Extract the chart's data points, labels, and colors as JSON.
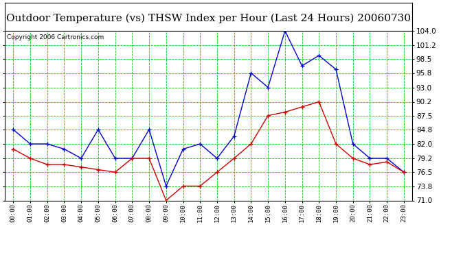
{
  "title": "Outdoor Temperature (vs) THSW Index per Hour (Last 24 Hours) 20060730",
  "copyright": "Copyright 2006 Cartronics.com",
  "hours": [
    "00:00",
    "01:00",
    "02:00",
    "03:00",
    "04:00",
    "05:00",
    "06:00",
    "07:00",
    "08:00",
    "09:00",
    "10:00",
    "11:00",
    "12:00",
    "13:00",
    "14:00",
    "15:00",
    "16:00",
    "17:00",
    "18:00",
    "19:00",
    "20:00",
    "21:00",
    "22:00",
    "23:00"
  ],
  "blue_data": [
    84.8,
    82.0,
    82.0,
    81.0,
    79.2,
    84.8,
    79.2,
    79.2,
    84.8,
    73.8,
    81.0,
    82.0,
    79.2,
    83.5,
    95.8,
    93.0,
    104.0,
    97.2,
    99.2,
    96.5,
    82.0,
    79.2,
    79.2,
    76.5
  ],
  "red_data": [
    81.0,
    79.2,
    78.0,
    78.0,
    77.5,
    77.0,
    76.5,
    79.2,
    79.2,
    71.0,
    73.8,
    73.8,
    76.5,
    79.2,
    82.0,
    87.5,
    88.2,
    89.2,
    90.2,
    82.0,
    79.2,
    78.0,
    78.5,
    76.5
  ],
  "ylim": [
    71.0,
    104.0
  ],
  "yticks": [
    71.0,
    73.8,
    76.5,
    79.2,
    82.0,
    84.8,
    87.5,
    90.2,
    93.0,
    95.8,
    98.5,
    101.2,
    104.0
  ],
  "background_color": "#ffffff",
  "plot_bg_color": "#ffffff",
  "grid_h_color": "#00cc00",
  "grid_v_color": "#00cc00",
  "blue_color": "#0000cc",
  "red_color": "#cc0000",
  "title_fontsize": 11,
  "copyright_fontsize": 6.5
}
